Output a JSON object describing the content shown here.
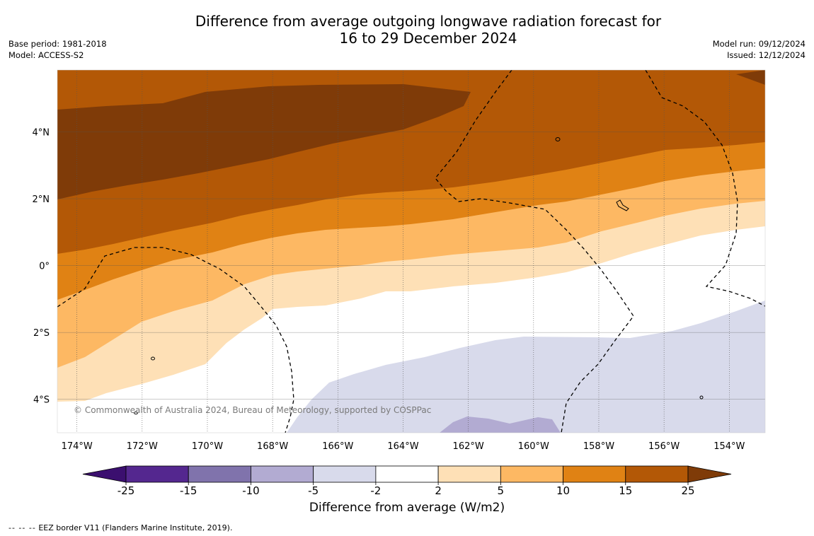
{
  "header": {
    "title_line1": "Difference from average outgoing longwave radiation forecast for",
    "title_line2": "16 to 29 December 2024",
    "base_period": "Base period: 1981-2018",
    "model": "Model: ACCESS-S2",
    "model_run": "Model run: 09/12/2024",
    "issued": "Issued: 12/12/2024"
  },
  "map": {
    "lon_range": [
      -174.6,
      -152.9
    ],
    "lat_range": [
      -5.0,
      5.85
    ],
    "lon_ticks": [
      {
        "value": -174,
        "label": "174°W"
      },
      {
        "value": -172,
        "label": "172°W"
      },
      {
        "value": -170,
        "label": "170°W"
      },
      {
        "value": -168,
        "label": "168°W"
      },
      {
        "value": -166,
        "label": "166°W"
      },
      {
        "value": -164,
        "label": "164°W"
      },
      {
        "value": -162,
        "label": "162°W"
      },
      {
        "value": -160,
        "label": "160°W"
      },
      {
        "value": -158,
        "label": "158°W"
      },
      {
        "value": -156,
        "label": "156°W"
      },
      {
        "value": -154,
        "label": "154°W"
      }
    ],
    "lat_ticks": [
      {
        "value": 4,
        "label": "4°N"
      },
      {
        "value": 2,
        "label": "2°N"
      },
      {
        "value": 0,
        "label": "0°"
      },
      {
        "value": -2,
        "label": "2°S"
      },
      {
        "value": -4,
        "label": "4°S"
      }
    ],
    "copyright": "© Commonwealth of Australia 2024, Bureau of Meteorology, supported by COSPPac"
  },
  "colorbar": {
    "title": "Difference from average (W/m2)",
    "levels": [
      "-25",
      "-15",
      "-10",
      "-5",
      "-2",
      "2",
      "5",
      "10",
      "15",
      "25"
    ],
    "colors": {
      "below": "#3b0f6f",
      "c_25_15": "#54278f",
      "c_15_10": "#8073ac",
      "c_10_5": "#b2abd2",
      "c_5_2": "#d8daeb",
      "c_2_2": "#ffffff",
      "c2_5": "#fee0b6",
      "c5_10": "#fdb863",
      "c10_15": "#e08214",
      "c15_25": "#b35806",
      "above": "#7f3b08"
    }
  },
  "footnote": {
    "dashes": "--  --  --",
    "text": "EEZ border V11 (Flanders Marine Institute, 2019)."
  }
}
